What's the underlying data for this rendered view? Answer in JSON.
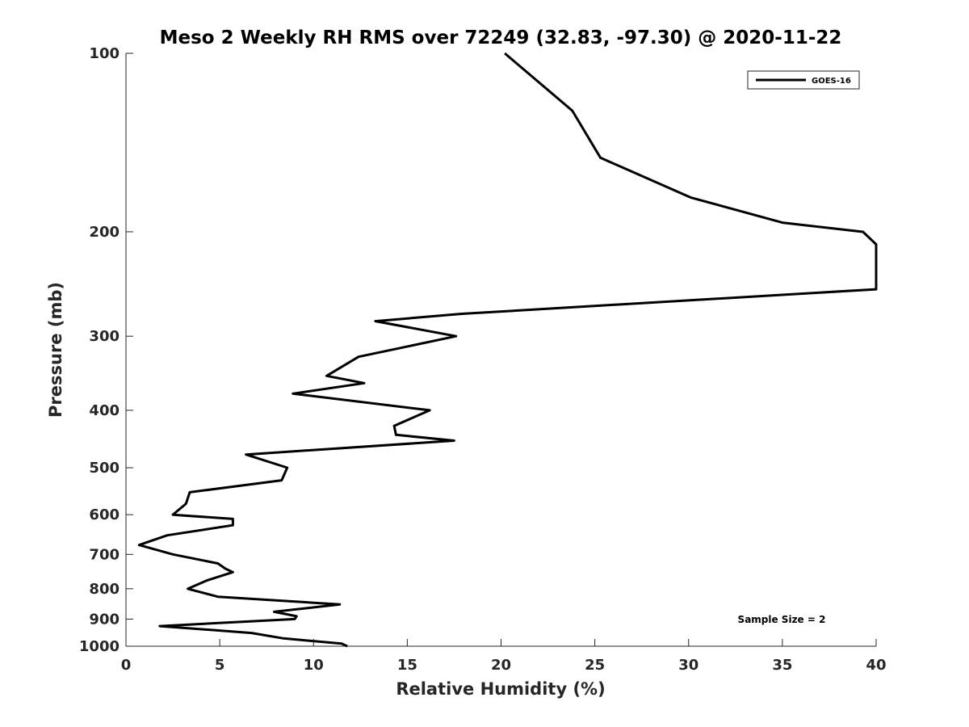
{
  "chart_data": {
    "type": "line",
    "title": "Meso 2 Weekly RH RMS over 72249 (32.83, -97.30) @ 2020-11-22",
    "xlabel": "Relative Humidity (%)",
    "ylabel": "Pressure (mb)",
    "xlim": [
      0,
      40
    ],
    "ylim": [
      100,
      1000
    ],
    "y_scale": "log",
    "y_reversed": true,
    "x_ticks": [
      0,
      5,
      10,
      15,
      20,
      25,
      30,
      35,
      40
    ],
    "y_ticks": [
      100,
      200,
      300,
      400,
      500,
      600,
      700,
      800,
      900,
      1000
    ],
    "grid": false,
    "legend_position": "top-right",
    "series": [
      {
        "name": "GOES-16",
        "color": "#000000",
        "points": [
          {
            "x": 20.2,
            "y": 100
          },
          {
            "x": 23.8,
            "y": 125
          },
          {
            "x": 25.3,
            "y": 150
          },
          {
            "x": 30.1,
            "y": 175
          },
          {
            "x": 35.0,
            "y": 193
          },
          {
            "x": 39.3,
            "y": 200
          },
          {
            "x": 40.0,
            "y": 210
          },
          {
            "x": 40.0,
            "y": 250
          },
          {
            "x": 17.9,
            "y": 275
          },
          {
            "x": 13.3,
            "y": 283
          },
          {
            "x": 17.6,
            "y": 300
          },
          {
            "x": 12.4,
            "y": 325
          },
          {
            "x": 10.7,
            "y": 350
          },
          {
            "x": 12.7,
            "y": 360
          },
          {
            "x": 8.9,
            "y": 375
          },
          {
            "x": 16.2,
            "y": 400
          },
          {
            "x": 14.3,
            "y": 425
          },
          {
            "x": 14.4,
            "y": 440
          },
          {
            "x": 17.5,
            "y": 450
          },
          {
            "x": 6.4,
            "y": 475
          },
          {
            "x": 8.6,
            "y": 500
          },
          {
            "x": 8.3,
            "y": 525
          },
          {
            "x": 3.4,
            "y": 550
          },
          {
            "x": 3.2,
            "y": 575
          },
          {
            "x": 2.5,
            "y": 600
          },
          {
            "x": 5.7,
            "y": 610
          },
          {
            "x": 5.7,
            "y": 625
          },
          {
            "x": 2.2,
            "y": 650
          },
          {
            "x": 0.7,
            "y": 675
          },
          {
            "x": 2.5,
            "y": 700
          },
          {
            "x": 4.9,
            "y": 725
          },
          {
            "x": 5.3,
            "y": 740
          },
          {
            "x": 5.7,
            "y": 750
          },
          {
            "x": 4.3,
            "y": 775
          },
          {
            "x": 3.3,
            "y": 800
          },
          {
            "x": 4.9,
            "y": 825
          },
          {
            "x": 11.4,
            "y": 850
          },
          {
            "x": 7.9,
            "y": 875
          },
          {
            "x": 9.1,
            "y": 890
          },
          {
            "x": 9.0,
            "y": 900
          },
          {
            "x": 1.8,
            "y": 925
          },
          {
            "x": 6.7,
            "y": 950
          },
          {
            "x": 8.4,
            "y": 970
          },
          {
            "x": 11.5,
            "y": 990
          },
          {
            "x": 11.8,
            "y": 1000
          }
        ]
      }
    ],
    "annotation": "Sample Size = 2"
  }
}
